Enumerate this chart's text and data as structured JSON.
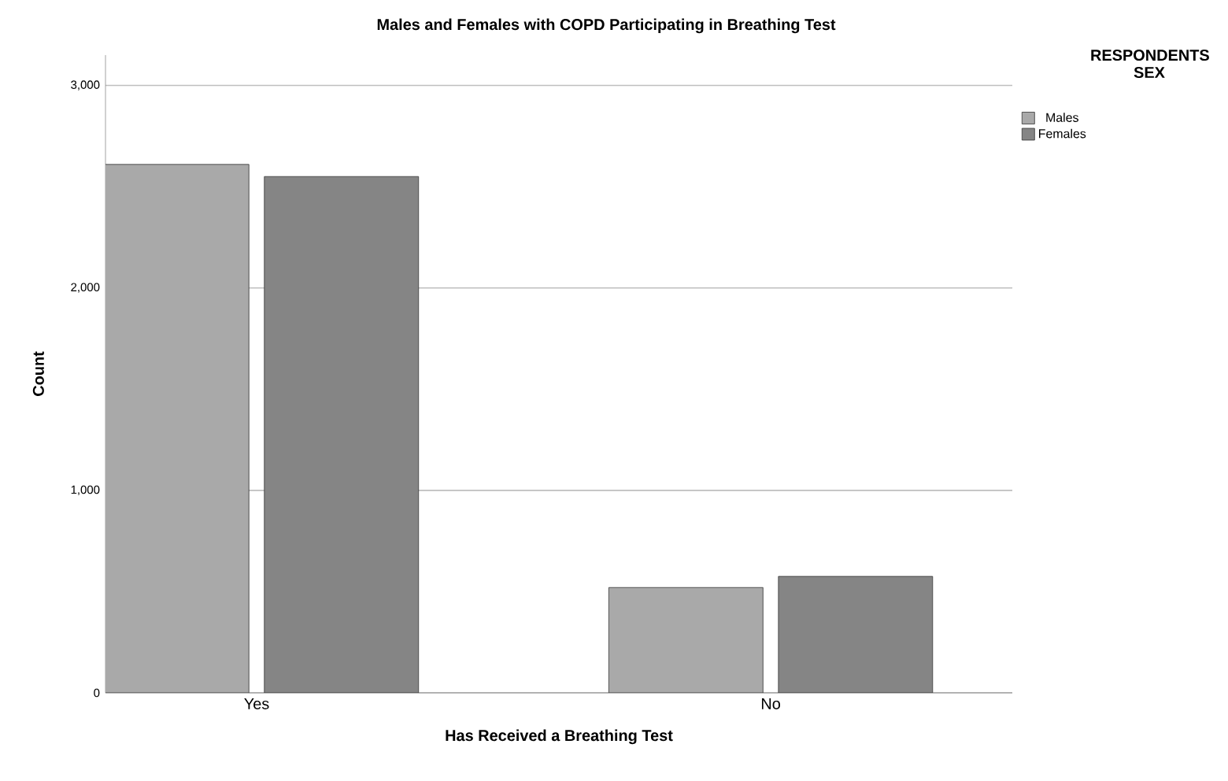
{
  "chart_data": {
    "type": "bar",
    "title": "Males and Females with COPD Participating in Breathing Test",
    "xlabel": "Has Received a Breathing Test",
    "ylabel": "Count",
    "legend_title": "RESPONDENTS SEX",
    "categories": [
      "Yes",
      "No"
    ],
    "series": [
      {
        "name": "Males",
        "color": "#a9a9a9",
        "values": [
          2610,
          520
        ]
      },
      {
        "name": "Females",
        "color": "#858585",
        "values": [
          2550,
          575
        ]
      }
    ],
    "ylim": [
      0,
      3150
    ],
    "yticks": [
      {
        "value": 0,
        "label": "0"
      },
      {
        "value": 1000,
        "label": "1,000"
      },
      {
        "value": 2000,
        "label": "2,000"
      },
      {
        "value": 3000,
        "label": "3,000"
      }
    ],
    "grid": "y",
    "legend": "top right"
  }
}
